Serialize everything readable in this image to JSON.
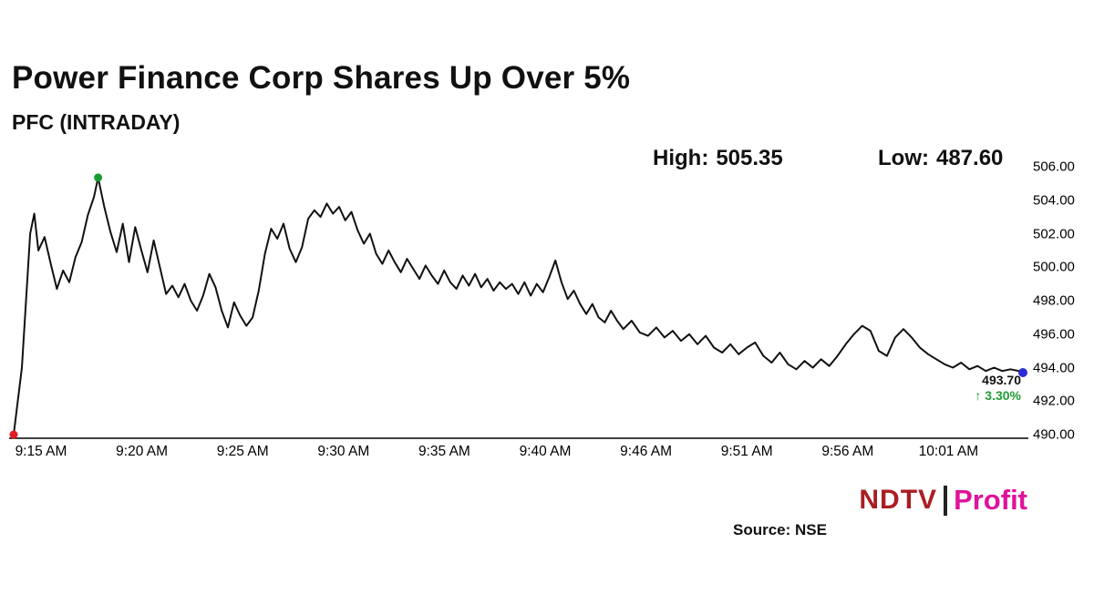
{
  "title": "Power Finance Corp Shares Up Over 5%",
  "subtitle": "PFC (INTRADAY)",
  "stats": {
    "high_label": "High:",
    "high_value": "505.35",
    "low_label": "Low:",
    "low_value": "487.60"
  },
  "chart_data": {
    "type": "line",
    "title": "Power Finance Corp Shares Up Over 5%",
    "subtitle": "PFC (INTRADAY)",
    "xlabel": "",
    "ylabel": "",
    "x_tick_labels": [
      "9:15 AM",
      "9:20 AM",
      "9:25 AM",
      "9:30 AM",
      "9:35 AM",
      "9:40 AM",
      "9:46 AM",
      "9:51 AM",
      "9:56 AM",
      "10:01 AM"
    ],
    "y_ticks": [
      "506.00",
      "504.00",
      "502.00",
      "500.00",
      "498.00",
      "496.00",
      "494.00",
      "492.00",
      "490.00"
    ],
    "y_range": [
      490,
      506
    ],
    "x_range_minutes": [
      0,
      49
    ],
    "grid": false,
    "legend": "none",
    "high": 505.35,
    "low": 487.6,
    "last_price": 493.7,
    "series": [
      {
        "name": "PFC intraday price",
        "color": "#111111",
        "points": [
          [
            0,
            490.0
          ],
          [
            0.4,
            494.0
          ],
          [
            0.8,
            502.0
          ],
          [
            1.0,
            503.2
          ],
          [
            1.2,
            501.0
          ],
          [
            1.5,
            501.8
          ],
          [
            1.8,
            500.2
          ],
          [
            2.1,
            498.7
          ],
          [
            2.4,
            499.8
          ],
          [
            2.7,
            499.1
          ],
          [
            3.0,
            500.6
          ],
          [
            3.3,
            501.5
          ],
          [
            3.6,
            503.1
          ],
          [
            3.9,
            504.2
          ],
          [
            4.1,
            505.35
          ],
          [
            4.4,
            503.6
          ],
          [
            4.7,
            502.1
          ],
          [
            5.0,
            500.9
          ],
          [
            5.3,
            502.6
          ],
          [
            5.6,
            500.3
          ],
          [
            5.9,
            502.4
          ],
          [
            6.2,
            501.0
          ],
          [
            6.5,
            499.7
          ],
          [
            6.8,
            501.6
          ],
          [
            7.1,
            500.0
          ],
          [
            7.4,
            498.4
          ],
          [
            7.7,
            498.9
          ],
          [
            8.0,
            498.2
          ],
          [
            8.3,
            499.0
          ],
          [
            8.6,
            498.0
          ],
          [
            8.9,
            497.4
          ],
          [
            9.2,
            498.3
          ],
          [
            9.5,
            499.6
          ],
          [
            9.8,
            498.8
          ],
          [
            10.1,
            497.4
          ],
          [
            10.4,
            496.4
          ],
          [
            10.7,
            497.9
          ],
          [
            11.0,
            497.1
          ],
          [
            11.3,
            496.5
          ],
          [
            11.6,
            497.0
          ],
          [
            11.9,
            498.6
          ],
          [
            12.2,
            500.8
          ],
          [
            12.5,
            502.3
          ],
          [
            12.8,
            501.7
          ],
          [
            13.1,
            502.6
          ],
          [
            13.4,
            501.1
          ],
          [
            13.7,
            500.3
          ],
          [
            14.0,
            501.2
          ],
          [
            14.3,
            502.9
          ],
          [
            14.6,
            503.4
          ],
          [
            14.9,
            503.0
          ],
          [
            15.2,
            503.8
          ],
          [
            15.5,
            503.2
          ],
          [
            15.8,
            503.6
          ],
          [
            16.1,
            502.8
          ],
          [
            16.4,
            503.3
          ],
          [
            16.7,
            502.2
          ],
          [
            17.0,
            501.4
          ],
          [
            17.3,
            502.0
          ],
          [
            17.6,
            500.8
          ],
          [
            17.9,
            500.2
          ],
          [
            18.2,
            501.0
          ],
          [
            18.5,
            500.3
          ],
          [
            18.8,
            499.7
          ],
          [
            19.1,
            500.5
          ],
          [
            19.4,
            499.9
          ],
          [
            19.7,
            499.3
          ],
          [
            20.0,
            500.1
          ],
          [
            20.3,
            499.5
          ],
          [
            20.6,
            499.0
          ],
          [
            20.9,
            499.8
          ],
          [
            21.2,
            499.1
          ],
          [
            21.5,
            498.7
          ],
          [
            21.8,
            499.5
          ],
          [
            22.1,
            498.9
          ],
          [
            22.4,
            499.6
          ],
          [
            22.7,
            498.8
          ],
          [
            23.0,
            499.3
          ],
          [
            23.3,
            498.6
          ],
          [
            23.6,
            499.1
          ],
          [
            23.9,
            498.7
          ],
          [
            24.2,
            499.0
          ],
          [
            24.5,
            498.4
          ],
          [
            24.8,
            499.1
          ],
          [
            25.1,
            498.3
          ],
          [
            25.4,
            499.0
          ],
          [
            25.7,
            498.5
          ],
          [
            26.0,
            499.4
          ],
          [
            26.3,
            500.4
          ],
          [
            26.6,
            499.1
          ],
          [
            26.9,
            498.1
          ],
          [
            27.2,
            498.6
          ],
          [
            27.5,
            497.8
          ],
          [
            27.8,
            497.2
          ],
          [
            28.1,
            497.8
          ],
          [
            28.4,
            497.0
          ],
          [
            28.7,
            496.7
          ],
          [
            29.0,
            497.4
          ],
          [
            29.3,
            496.8
          ],
          [
            29.6,
            496.3
          ],
          [
            30.0,
            496.8
          ],
          [
            30.4,
            496.1
          ],
          [
            30.8,
            495.9
          ],
          [
            31.2,
            496.4
          ],
          [
            31.6,
            495.8
          ],
          [
            32.0,
            496.2
          ],
          [
            32.4,
            495.6
          ],
          [
            32.8,
            496.0
          ],
          [
            33.2,
            495.4
          ],
          [
            33.6,
            495.9
          ],
          [
            34.0,
            495.2
          ],
          [
            34.4,
            494.9
          ],
          [
            34.8,
            495.4
          ],
          [
            35.2,
            494.8
          ],
          [
            35.6,
            495.2
          ],
          [
            36.0,
            495.5
          ],
          [
            36.4,
            494.7
          ],
          [
            36.8,
            494.3
          ],
          [
            37.2,
            494.9
          ],
          [
            37.6,
            494.2
          ],
          [
            38.0,
            493.9
          ],
          [
            38.4,
            494.4
          ],
          [
            38.8,
            494.0
          ],
          [
            39.2,
            494.5
          ],
          [
            39.6,
            494.1
          ],
          [
            40.0,
            494.7
          ],
          [
            40.4,
            495.4
          ],
          [
            40.8,
            496.0
          ],
          [
            41.2,
            496.5
          ],
          [
            41.6,
            496.2
          ],
          [
            42.0,
            495.0
          ],
          [
            42.4,
            494.7
          ],
          [
            42.8,
            495.8
          ],
          [
            43.2,
            496.3
          ],
          [
            43.6,
            495.8
          ],
          [
            44.0,
            495.2
          ],
          [
            44.4,
            494.8
          ],
          [
            44.8,
            494.5
          ],
          [
            45.2,
            494.2
          ],
          [
            45.6,
            494.0
          ],
          [
            46.0,
            494.3
          ],
          [
            46.4,
            493.9
          ],
          [
            46.8,
            494.1
          ],
          [
            47.2,
            493.8
          ],
          [
            47.6,
            494.0
          ],
          [
            48.0,
            493.8
          ],
          [
            48.4,
            493.9
          ],
          [
            48.8,
            493.8
          ],
          [
            49.0,
            493.7
          ]
        ]
      }
    ],
    "markers": [
      {
        "id": "start-dot",
        "t": 0,
        "v": 490.0,
        "color": "#e11b22",
        "r": 4.5
      },
      {
        "id": "peak-dot",
        "t": 4.1,
        "v": 505.35,
        "color": "#169b2f",
        "r": 4.5
      },
      {
        "id": "end-dot",
        "t": 49,
        "v": 493.7,
        "color": "#2b2bd5",
        "r": 5
      }
    ],
    "end_annotation": {
      "price": "493.70",
      "change": "↑ 3.30%",
      "change_color": "#1f9c35"
    }
  },
  "footer": {
    "source": "Source: NSE",
    "logo": {
      "ndtv": "NDTV",
      "profit": "Profit"
    }
  }
}
